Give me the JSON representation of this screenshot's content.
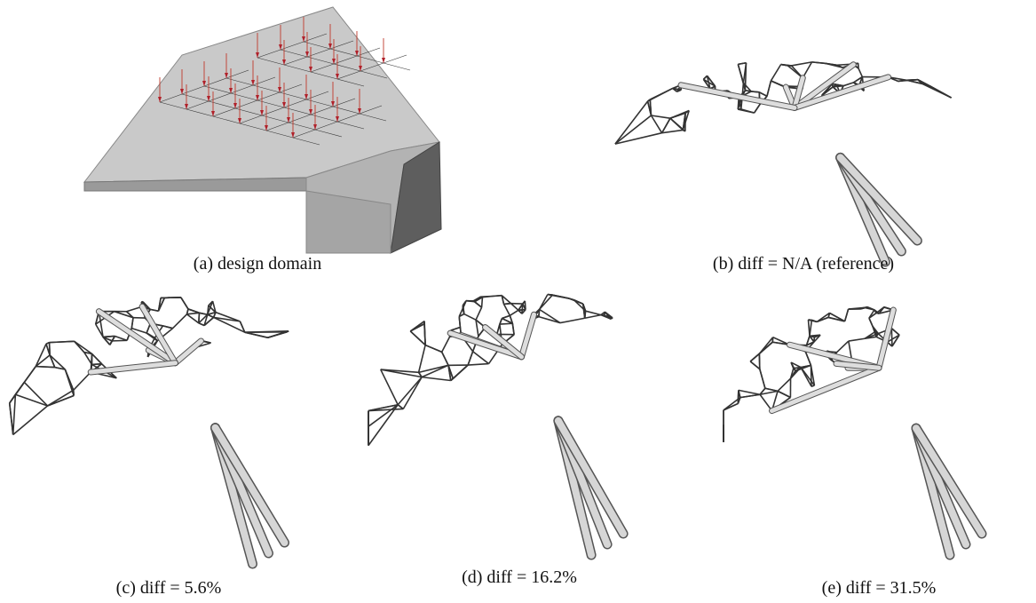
{
  "figure": {
    "panels": [
      {
        "caption": "(a) design domain"
      },
      {
        "caption": "(b) diff = N/A (reference)"
      },
      {
        "caption": "(c) diff = 5.6%"
      },
      {
        "caption": "(d) diff = 16.2%"
      },
      {
        "caption": "(e) diff = 31.5%"
      }
    ]
  }
}
